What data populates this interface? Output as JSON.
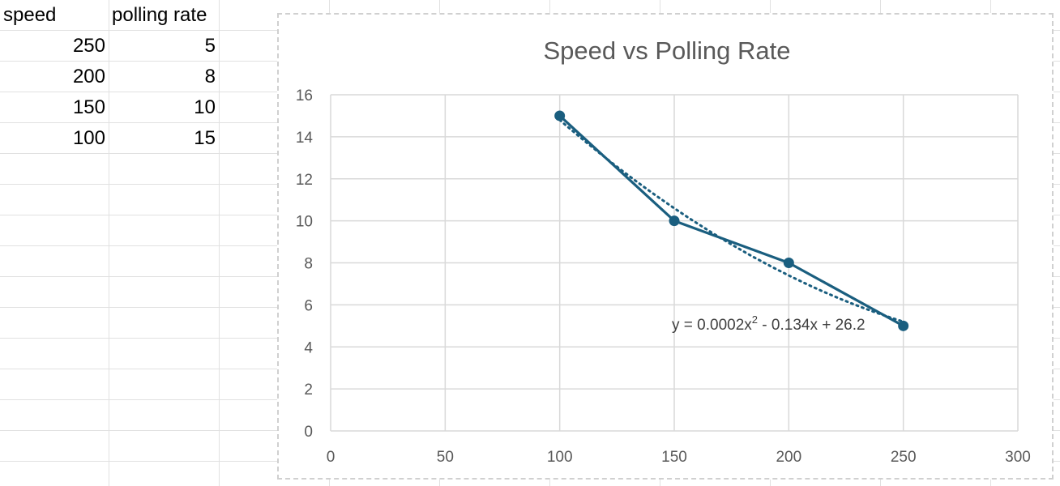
{
  "spreadsheet": {
    "headers": [
      "speed",
      "polling rate"
    ],
    "rows": [
      [
        "250",
        "5"
      ],
      [
        "200",
        "8"
      ],
      [
        "150",
        "10"
      ],
      [
        "100",
        "15"
      ]
    ]
  },
  "chart_data": {
    "type": "scatter",
    "title": "Speed vs Polling Rate",
    "xlabel": "",
    "ylabel": "",
    "xlim": [
      0,
      300
    ],
    "ylim": [
      0,
      16
    ],
    "x_ticks": [
      0,
      50,
      100,
      150,
      200,
      250,
      300
    ],
    "y_ticks": [
      0,
      2,
      4,
      6,
      8,
      10,
      12,
      14,
      16
    ],
    "grid": true,
    "legend": "none",
    "series": [
      {
        "x": [
          250,
          200,
          150,
          100
        ],
        "y": [
          5,
          8,
          10,
          15
        ],
        "color": "#1a5e7f",
        "markers": true,
        "line": "solid"
      }
    ],
    "trendline": {
      "type": "polynomial-2",
      "coefficients": [
        0.0002,
        -0.134,
        26.2
      ],
      "style": "dotted",
      "color": "#1a5e7f",
      "equation_label": "y = 0.0002x2 - 0.134x + 26.2",
      "equation_parts": {
        "before": "y = 0.0002x",
        "sup": "2",
        "after": " - 0.134x + 26.2"
      }
    }
  }
}
